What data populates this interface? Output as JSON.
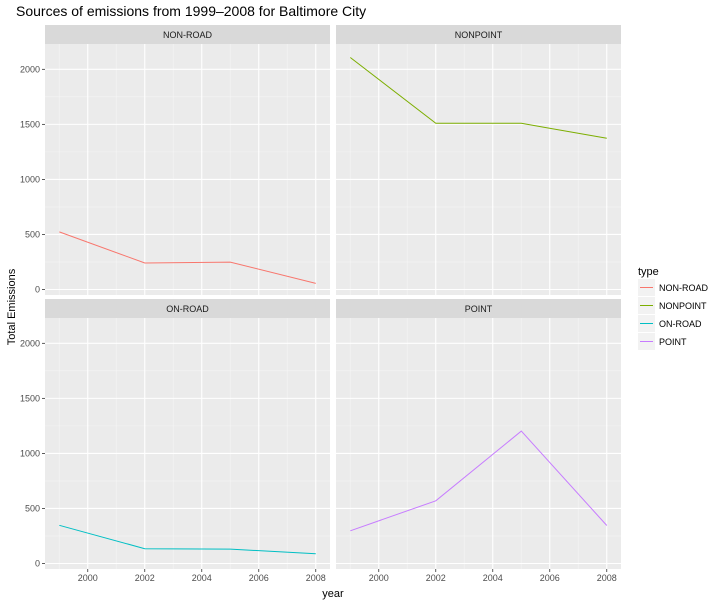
{
  "chart_data": {
    "type": "line",
    "title": "Sources of emissions from 1999–2008 for Baltimore City",
    "xlabel": "year",
    "ylabel": "Total Emissions",
    "x": [
      1999,
      2002,
      2005,
      2008
    ],
    "xlim": [
      1998.5,
      2008.5
    ],
    "ylim": [
      -50,
      2230
    ],
    "x_ticks": [
      2000,
      2002,
      2004,
      2006,
      2008
    ],
    "y_ticks": [
      0,
      500,
      1000,
      1500,
      2000
    ],
    "grid": true,
    "legend": {
      "title": "type",
      "position": "right"
    },
    "facets": [
      "NON-ROAD",
      "NONPOINT",
      "ON-ROAD",
      "POINT"
    ],
    "series": [
      {
        "name": "NON-ROAD",
        "color": "#F8766D",
        "values": [
          522.94,
          240.85,
          248.93,
          55.82
        ]
      },
      {
        "name": "NONPOINT",
        "color": "#7CAE00",
        "values": [
          2107.63,
          1509.5,
          1509.5,
          1373.21
        ]
      },
      {
        "name": "ON-ROAD",
        "color": "#00BFC4",
        "values": [
          346.82,
          134.31,
          130.43,
          88.28
        ]
      },
      {
        "name": "POINT",
        "color": "#C77CFF",
        "values": [
          296.8,
          569.26,
          1202.49,
          344.98
        ]
      }
    ]
  }
}
